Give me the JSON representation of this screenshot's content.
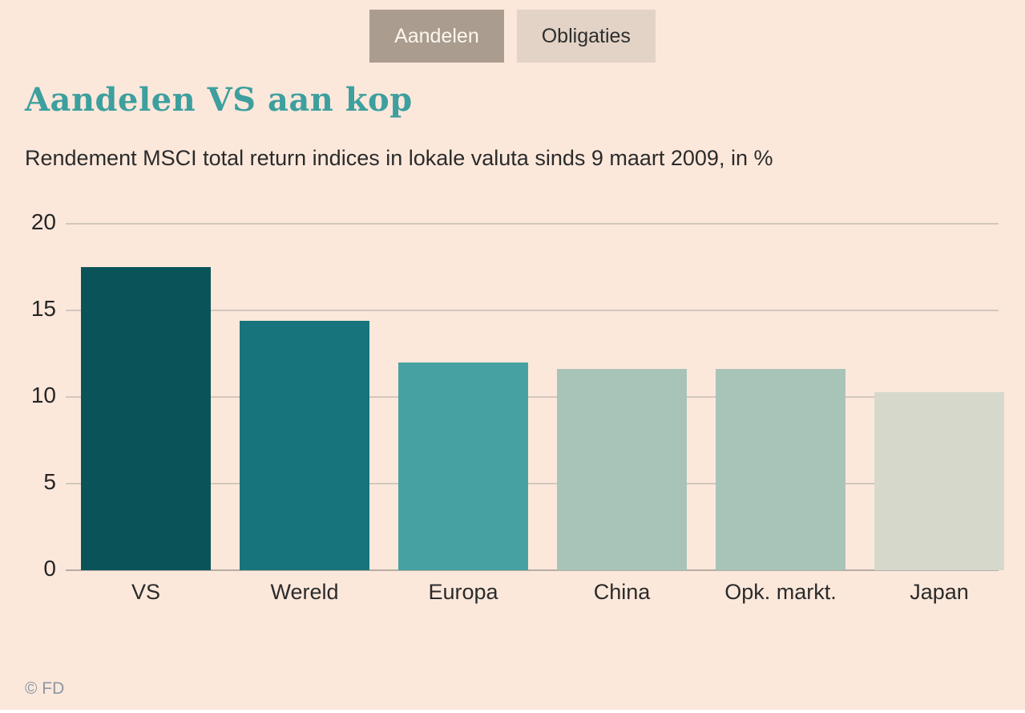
{
  "tabs": [
    {
      "label": "Aandelen",
      "active": true
    },
    {
      "label": "Obligaties",
      "active": false
    }
  ],
  "header": {
    "title": "Aandelen VS aan kop",
    "subtitle": "Rendement MSCI total return indices in lokale valuta sinds 9 maart 2009, in %"
  },
  "chart_data": {
    "type": "bar",
    "categories": [
      "VS",
      "Wereld",
      "Europa",
      "China",
      "Opk. markt.",
      "Japan"
    ],
    "values": [
      17.5,
      14.4,
      12.0,
      11.6,
      11.6,
      10.3
    ],
    "bar_colors": [
      "#0a5459",
      "#17747c",
      "#46a2a2",
      "#a8c3b8",
      "#a8c3b8",
      "#d6d8cc"
    ],
    "title": "Aandelen VS aan kop",
    "subtitle": "Rendement MSCI total return indices in lokale valuta sinds 9 maart 2009, in %",
    "xlabel": "",
    "ylabel": "",
    "unit": "%",
    "ylim": [
      0,
      20
    ],
    "yticks": [
      0,
      5,
      10,
      15,
      20
    ],
    "grid": true,
    "legend": false
  },
  "colors": {
    "background": "#fce8db",
    "title": "#3d9f9e",
    "tab_active_bg": "#aa9d8f",
    "tab_inactive_bg": "#e2d3c6",
    "gridline": "#d2c7bc",
    "baseline": "#b5ada3",
    "text": "#2b2b2b",
    "footer_text": "#8d96a0"
  },
  "footer": {
    "copyright": "© FD"
  }
}
